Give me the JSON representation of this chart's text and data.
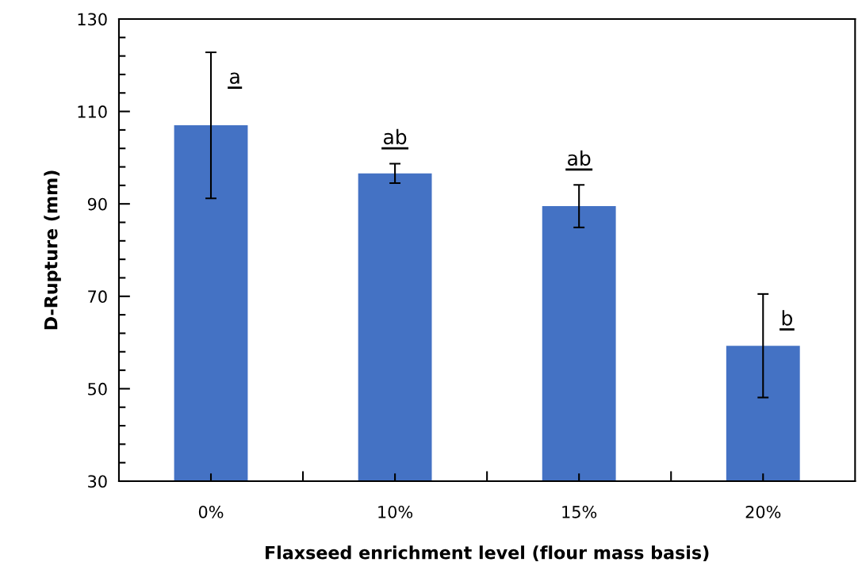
{
  "chart_data": {
    "type": "bar",
    "xlabel": "Flaxseed enrichment level (flour mass basis)",
    "ylabel": "D-Rupture (mm)",
    "categories": [
      "0%",
      "10%",
      "15%",
      "20%"
    ],
    "values": [
      107.0,
      96.6,
      89.5,
      59.3
    ],
    "errors": [
      15.8,
      2.1,
      4.6,
      11.2
    ],
    "color": "#4472c4",
    "ylim": [
      30,
      130
    ],
    "yticks": [
      30,
      {
        "value": 34,
        "label": null
      },
      {
        "value": 38,
        "label": null
      },
      {
        "value": 42,
        "label": null
      },
      {
        "value": 46,
        "label": null
      },
      50,
      {
        "value": 54,
        "label": null
      },
      {
        "value": 58,
        "label": null
      },
      {
        "value": 62,
        "label": null
      },
      {
        "value": 66,
        "label": null
      },
      70,
      {
        "value": 74,
        "label": null
      },
      {
        "value": 78,
        "label": null
      },
      {
        "value": 82,
        "label": null
      },
      {
        "value": 86,
        "label": null
      },
      90,
      {
        "value": 94,
        "label": null
      },
      {
        "value": 98,
        "label": null
      },
      {
        "value": 102,
        "label": null
      },
      {
        "value": 106,
        "label": null
      },
      110,
      {
        "value": 114,
        "label": null
      },
      {
        "value": 118,
        "label": null
      },
      {
        "value": 122,
        "label": null
      },
      {
        "value": 126,
        "label": null
      },
      130
    ],
    "annotations": [
      "a",
      "ab",
      "ab",
      "b"
    ],
    "grid": false,
    "legend": false
  }
}
